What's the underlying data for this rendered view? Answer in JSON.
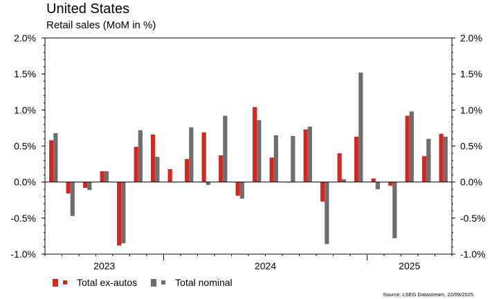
{
  "title": "United States",
  "subtitle": "Retail sales (MoM in %)",
  "source": "Source: LSEG Datastream, 22/09/2025",
  "colors": {
    "ex_autos": "#d7261e",
    "nominal": "#6e6e6e"
  },
  "chart_data": {
    "type": "bar",
    "title": "United States",
    "subtitle": "Retail sales (MoM in %)",
    "ylim": [
      -1.0,
      2.0
    ],
    "y_ticks": [
      "-1.0%",
      "-0.5%",
      "0.0%",
      "0.5%",
      "1.0%",
      "1.5%",
      "2.0%"
    ],
    "y_tick_values": [
      -1.0,
      -0.5,
      0.0,
      0.5,
      1.0,
      1.5,
      2.0
    ],
    "year_labels": [
      {
        "label": "2023",
        "start": 0,
        "end": 7
      },
      {
        "label": "2024",
        "start": 7,
        "end": 19
      },
      {
        "label": "2025",
        "start": 19,
        "end": 26
      }
    ],
    "legend_placement": "bottom-left",
    "grid": false,
    "series": [
      {
        "name": "Total ex-autos",
        "color": "#d7261e",
        "values": [
          0.58,
          -0.16,
          -0.08,
          0.15,
          -0.88,
          0.49,
          0.66,
          0.18,
          0.32,
          0.69,
          0.37,
          -0.19,
          1.04,
          0.34,
          0.0,
          0.73,
          -0.27,
          0.4,
          0.63,
          0.05,
          -0.05,
          0.92,
          0.36,
          0.67
        ]
      },
      {
        "name": "Total nominal",
        "color": "#6e6e6e",
        "values": [
          0.68,
          -0.47,
          -0.11,
          0.15,
          -0.85,
          0.72,
          0.35,
          0.0,
          0.76,
          -0.04,
          0.92,
          -0.23,
          0.86,
          0.65,
          0.64,
          0.77,
          -0.86,
          0.04,
          1.52,
          -0.1,
          -0.78,
          0.98,
          0.6,
          0.63
        ]
      }
    ]
  }
}
